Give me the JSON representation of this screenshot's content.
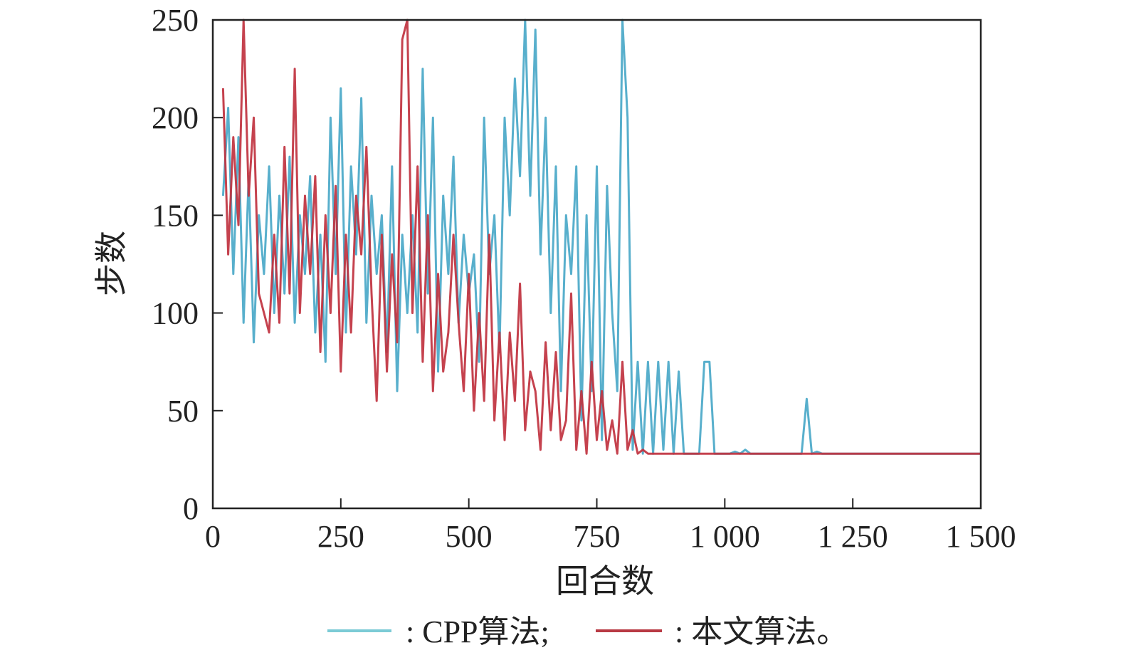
{
  "chart_data": {
    "type": "line",
    "title": "",
    "xlabel": "回合数",
    "ylabel": "步数",
    "xlim": [
      0,
      1500
    ],
    "ylim": [
      0,
      250
    ],
    "xticks": [
      "0",
      "250",
      "500",
      "750",
      "1 000",
      "1 250",
      "1 500"
    ],
    "xtick_values": [
      0,
      250,
      500,
      750,
      1000,
      1250,
      1500
    ],
    "yticks": [
      "0",
      "50",
      "100",
      "150",
      "200",
      "250"
    ],
    "ytick_values": [
      0,
      50,
      100,
      150,
      200,
      250
    ],
    "grid": false,
    "legend_position": "bottom",
    "x_start": 20,
    "x_step": 10,
    "series": [
      {
        "name": "CPP算法",
        "legend_text": ": CPP算法;",
        "color": "#4aa8c8",
        "legend_color": "#7ccbd6",
        "values": [
          160,
          205,
          120,
          190,
          95,
          170,
          85,
          150,
          120,
          175,
          100,
          160,
          110,
          180,
          95,
          150,
          120,
          170,
          90,
          140,
          75,
          200,
          120,
          215,
          90,
          175,
          130,
          210,
          95,
          160,
          120,
          150,
          80,
          175,
          60,
          140,
          100,
          150,
          90,
          225,
          110,
          200,
          70,
          160,
          120,
          180,
          95,
          140,
          110,
          130,
          75,
          200,
          120,
          150,
          80,
          200,
          150,
          220,
          170,
          250,
          160,
          245,
          130,
          200,
          100,
          175,
          60,
          150,
          120,
          175,
          45,
          150,
          60,
          175,
          35,
          165,
          100,
          60,
          250,
          200,
          30,
          75,
          28,
          75,
          28,
          75,
          30,
          75,
          28,
          70,
          28,
          28,
          28,
          28,
          75,
          75,
          28,
          28,
          28,
          28,
          29,
          28,
          30,
          28,
          28,
          28,
          28,
          28,
          28,
          28,
          28,
          28,
          28,
          28,
          56,
          28,
          29,
          28,
          28,
          28,
          28,
          28,
          28,
          28,
          28,
          28,
          28,
          28,
          28,
          28,
          28,
          28,
          28,
          28,
          28,
          28,
          28,
          28,
          28,
          28,
          28,
          28,
          28,
          28,
          28,
          28,
          28,
          28,
          28
        ]
      },
      {
        "name": "本文算法",
        "legend_text": ": 本文算法。",
        "color": "#c0323f",
        "legend_color": "#b83a44",
        "values": [
          215,
          130,
          190,
          145,
          250,
          160,
          200,
          110,
          100,
          90,
          140,
          95,
          185,
          110,
          225,
          100,
          160,
          120,
          170,
          80,
          150,
          100,
          165,
          70,
          140,
          90,
          160,
          130,
          185,
          110,
          55,
          140,
          70,
          130,
          85,
          240,
          250,
          100,
          175,
          75,
          150,
          60,
          120,
          70,
          90,
          140,
          95,
          60,
          120,
          50,
          100,
          55,
          140,
          45,
          90,
          35,
          90,
          55,
          115,
          40,
          70,
          60,
          30,
          85,
          40,
          80,
          35,
          45,
          110,
          30,
          60,
          28,
          75,
          35,
          60,
          30,
          45,
          28,
          75,
          30,
          40,
          28,
          30,
          28,
          28,
          28,
          28,
          28,
          28,
          28,
          28,
          28,
          28,
          28,
          28,
          28,
          28,
          28,
          28,
          28,
          28,
          28,
          28,
          28,
          28,
          28,
          28,
          28,
          28,
          28,
          28,
          28,
          28,
          28,
          28,
          28,
          28,
          28,
          28,
          28,
          28,
          28,
          28,
          28,
          28,
          28,
          28,
          28,
          28,
          28,
          28,
          28,
          28,
          28,
          28,
          28,
          28,
          28,
          28,
          28,
          28,
          28,
          28,
          28,
          28,
          28,
          28,
          28,
          28
        ]
      }
    ]
  }
}
